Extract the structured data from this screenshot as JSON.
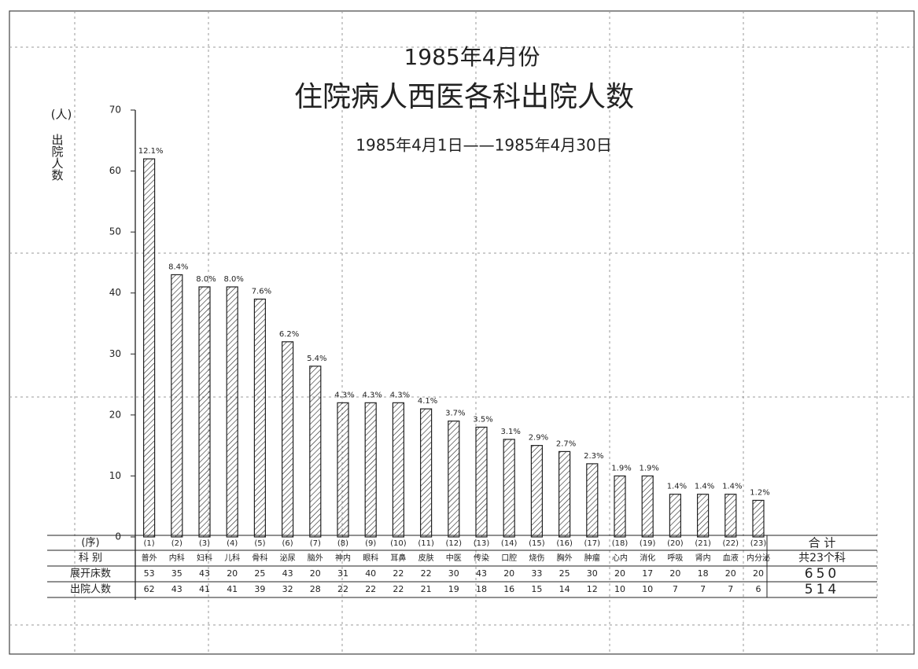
{
  "chart_data": {
    "type": "bar",
    "title": "1985年4月份",
    "subtitle": "住院病人西医各科出院人数",
    "date_range": "1985年4月1日——1985年4月30日",
    "y_unit": "(人)",
    "y_label": "出院人数",
    "categories": [
      "(1)",
      "(2)",
      "(3)",
      "(4)",
      "(5)",
      "(6)",
      "(7)",
      "(8)",
      "(9)",
      "(10)",
      "(11)",
      "(12)",
      "(13)",
      "(14)",
      "(15)",
      "(16)",
      "(17)",
      "(18)",
      "(19)",
      "(20)",
      "(21)",
      "(22)",
      "(23)"
    ],
    "values": [
      62,
      43,
      41,
      41,
      39,
      32,
      28,
      22,
      22,
      22,
      21,
      19,
      18,
      16,
      15,
      14,
      12,
      10,
      10,
      7,
      7,
      7,
      6
    ],
    "value_labels": [
      "12.1%",
      "8.4%",
      "8.0%",
      "8.0%",
      "7.6%",
      "6.2%",
      "5.4%",
      "4.3%",
      "4.3%",
      "4.3%",
      "4.1%",
      "3.7%",
      "3.5%",
      "3.1%",
      "2.9%",
      "2.7%",
      "2.3%",
      "1.9%",
      "1.9%",
      "1.4%",
      "1.4%",
      "1.4%",
      "1.2%"
    ],
    "color": "#222222",
    "ylim": [
      0,
      70
    ],
    "yticks": [
      0,
      10,
      20,
      30,
      40,
      50,
      60,
      70
    ],
    "table": {
      "row_labels": [
        "(序)",
        "科 别",
        "展开床数",
        "出院人数"
      ],
      "total_header": "合 计",
      "departments": [
        "普外",
        "内科",
        "妇科",
        "儿科",
        "骨科",
        "泌尿",
        "脑外",
        "神内",
        "眼科",
        "耳鼻",
        "皮肤",
        "中医",
        "传染",
        "口腔",
        "烧伤",
        "胸外",
        "肿瘤",
        "心内",
        "消化",
        "呼吸",
        "肾内",
        "血液",
        "内分泌"
      ],
      "total_label": "共23个科",
      "beds": [
        53,
        35,
        43,
        20,
        25,
        43,
        20,
        31,
        40,
        22,
        22,
        30,
        43,
        20,
        33,
        25,
        30,
        20,
        17,
        20,
        18,
        20,
        20
      ],
      "beds_total": 650,
      "discharged_total": 514
    }
  }
}
